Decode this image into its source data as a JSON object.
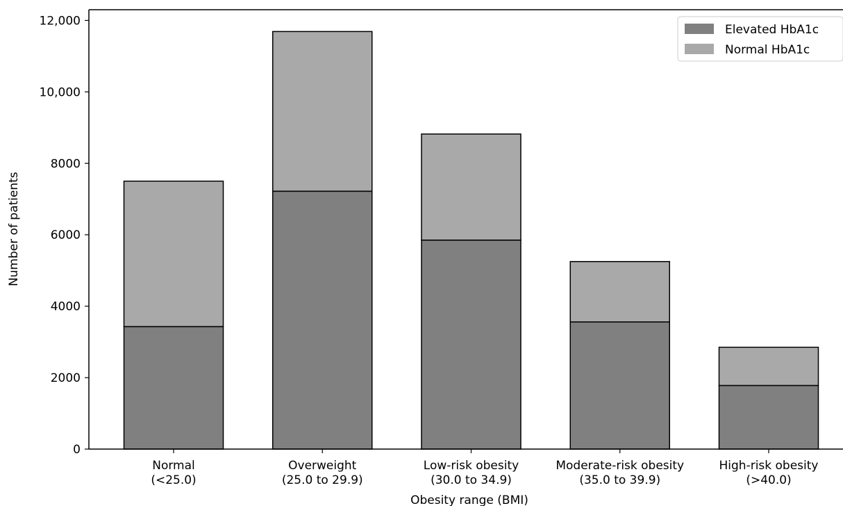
{
  "chart_data": {
    "type": "bar",
    "stacked": true,
    "categories": [
      [
        "Normal",
        "(<25.0)"
      ],
      [
        "Overweight",
        "(25.0 to 29.9)"
      ],
      [
        "Low-risk obesity",
        "(30.0 to 34.9)"
      ],
      [
        "Moderate-risk obesity",
        "(35.0 to 39.9)"
      ],
      [
        "High-risk obesity",
        "(>40.0)"
      ]
    ],
    "series": [
      {
        "name": "Elevated HbA1c",
        "color": "#808080",
        "values": [
          3430,
          7220,
          5850,
          3560,
          1780
        ]
      },
      {
        "name": "Normal HbA1c",
        "color": "#a9a9a9",
        "values": [
          4070,
          4470,
          2970,
          1690,
          1070
        ]
      }
    ],
    "xlabel": "Obesity range (BMI)",
    "ylabel": "Number of patients",
    "ylim": [
      0,
      12300
    ],
    "yticks": [
      0,
      2000,
      4000,
      6000,
      8000,
      10000,
      12000
    ],
    "ytick_labels": [
      "0",
      "2000",
      "4000",
      "6000",
      "8000",
      "10,000",
      "12,000"
    ],
    "legend_position": "top-right",
    "grid": false
  }
}
